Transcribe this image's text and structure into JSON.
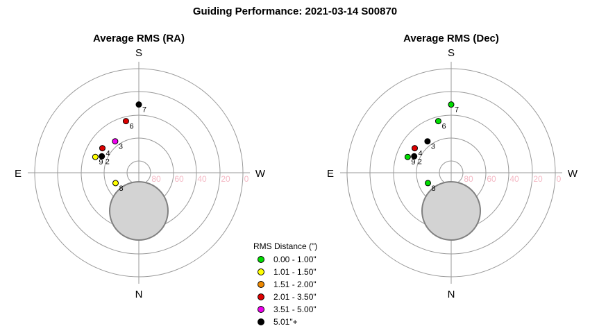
{
  "title": "Guiding Performance: 2021-03-14 S00870",
  "chart_data": [
    {
      "type": "scatter",
      "title": "Average RMS (RA)",
      "coordinates": "polar-altaz",
      "directions": {
        "top": "S",
        "bottom": "N",
        "left": "E",
        "right": "W"
      },
      "altitude_ticks": [
        "80",
        "60",
        "40",
        "20",
        "0"
      ],
      "points": [
        {
          "label": "2",
          "az": 114,
          "alt": 55,
          "rms_class": "5.01\"+"
        },
        {
          "label": "3",
          "az": 143,
          "alt": 56,
          "rms_class": "3.51 - 5.00\""
        },
        {
          "label": "4",
          "az": 124,
          "alt": 52,
          "rms_class": "2.01 - 3.50\""
        },
        {
          "label": "6",
          "az": 166,
          "alt": 44,
          "rms_class": "2.01 - 3.50\""
        },
        {
          "label": "7",
          "az": 180,
          "alt": 31,
          "rms_class": "5.01\"+"
        },
        {
          "label": "8",
          "az": 66,
          "alt": 68,
          "rms_class": "1.01 - 1.50\""
        },
        {
          "label": "9",
          "az": 110,
          "alt": 50,
          "rms_class": "1.01 - 1.50\""
        }
      ]
    },
    {
      "type": "scatter",
      "title": "Average RMS (Dec)",
      "coordinates": "polar-altaz",
      "directions": {
        "top": "S",
        "bottom": "N",
        "left": "E",
        "right": "W"
      },
      "altitude_ticks": [
        "80",
        "60",
        "40",
        "20",
        "0"
      ],
      "points": [
        {
          "label": "2",
          "az": 114,
          "alt": 55,
          "rms_class": "5.01\"+"
        },
        {
          "label": "3",
          "az": 143,
          "alt": 56,
          "rms_class": "5.01\"+"
        },
        {
          "label": "4",
          "az": 124,
          "alt": 52,
          "rms_class": "2.01 - 3.50\""
        },
        {
          "label": "6",
          "az": 166,
          "alt": 44,
          "rms_class": "0.00 - 1.00\""
        },
        {
          "label": "7",
          "az": 180,
          "alt": 31,
          "rms_class": "0.00 - 1.00\""
        },
        {
          "label": "8",
          "az": 66,
          "alt": 68,
          "rms_class": "0.00 - 1.00\""
        },
        {
          "label": "9",
          "az": 110,
          "alt": 50,
          "rms_class": "0.00 - 1.00\""
        }
      ]
    }
  ],
  "legend": {
    "title": "RMS Distance (\")",
    "items": [
      {
        "label": "0.00 - 1.00\"",
        "color": "#00dd00"
      },
      {
        "label": "1.01 - 1.50\"",
        "color": "#ffff00"
      },
      {
        "label": "1.51 - 2.00\"",
        "color": "#ee8800"
      },
      {
        "label": "2.01 - 3.50\"",
        "color": "#dd0000"
      },
      {
        "label": "3.51 - 5.00\"",
        "color": "#ee00ee"
      },
      {
        "label": "5.01\"+",
        "color": "#000000"
      }
    ]
  },
  "colors": {
    "ring": "#999999",
    "obstruction": "#d3d3d3",
    "tick_label": "#f4b8c4"
  }
}
